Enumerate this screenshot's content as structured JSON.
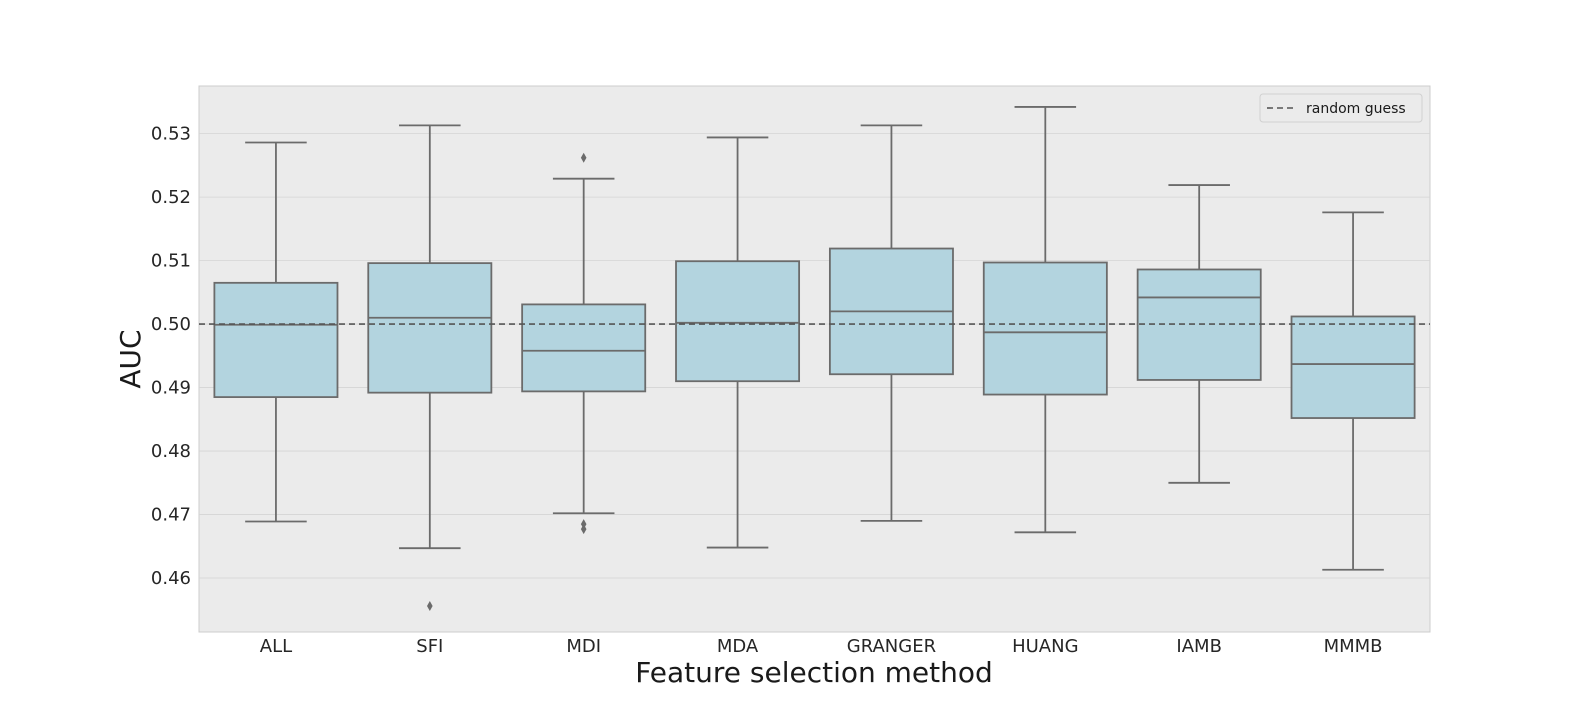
{
  "chart_data": {
    "type": "box",
    "xlabel": "Feature selection method",
    "ylabel": "AUC",
    "ylim": [
      0.4515,
      0.5375
    ],
    "yticks": [
      0.46,
      0.47,
      0.48,
      0.49,
      0.5,
      0.51,
      0.52,
      0.53
    ],
    "ytick_labels": [
      "0.46",
      "0.47",
      "0.48",
      "0.49",
      "0.50",
      "0.51",
      "0.52",
      "0.53"
    ],
    "grid": "horizontal",
    "legend": {
      "position": "top-right",
      "entries": [
        {
          "label": "random guess",
          "style": "dashed"
        }
      ]
    },
    "reference_line": {
      "label": "random guess",
      "y": 0.5
    },
    "colors": {
      "box_fill": "#b3d4df",
      "box_edge": "#6b6b6b",
      "background": "#ebebeb",
      "grid": "#d4d4d4",
      "reference": "#555555"
    },
    "categories": [
      "ALL",
      "SFI",
      "MDI",
      "MDA",
      "GRANGER",
      "HUANG",
      "IAMB",
      "MMMB"
    ],
    "boxes": [
      {
        "category": "ALL",
        "whisker_low": 0.4689,
        "q1": 0.4885,
        "median": 0.4999,
        "q3": 0.5065,
        "whisker_high": 0.5286,
        "outliers": []
      },
      {
        "category": "SFI",
        "whisker_low": 0.4647,
        "q1": 0.4892,
        "median": 0.501,
        "q3": 0.5096,
        "whisker_high": 0.5313,
        "outliers": [
          0.4556
        ]
      },
      {
        "category": "MDI",
        "whisker_low": 0.4702,
        "q1": 0.4894,
        "median": 0.4958,
        "q3": 0.5031,
        "whisker_high": 0.5229,
        "outliers": [
          0.5262,
          0.4685,
          0.4677
        ]
      },
      {
        "category": "MDA",
        "whisker_low": 0.4648,
        "q1": 0.491,
        "median": 0.5002,
        "q3": 0.5099,
        "whisker_high": 0.5294,
        "outliers": []
      },
      {
        "category": "GRANGER",
        "whisker_low": 0.469,
        "q1": 0.4921,
        "median": 0.502,
        "q3": 0.5119,
        "whisker_high": 0.5313,
        "outliers": []
      },
      {
        "category": "HUANG",
        "whisker_low": 0.4672,
        "q1": 0.4889,
        "median": 0.4987,
        "q3": 0.5097,
        "whisker_high": 0.5342,
        "outliers": []
      },
      {
        "category": "IAMB",
        "whisker_low": 0.475,
        "q1": 0.4912,
        "median": 0.5042,
        "q3": 0.5086,
        "whisker_high": 0.5219,
        "outliers": []
      },
      {
        "category": "MMMB",
        "whisker_low": 0.4613,
        "q1": 0.4852,
        "median": 0.4937,
        "q3": 0.5012,
        "whisker_high": 0.5176,
        "outliers": []
      }
    ]
  }
}
